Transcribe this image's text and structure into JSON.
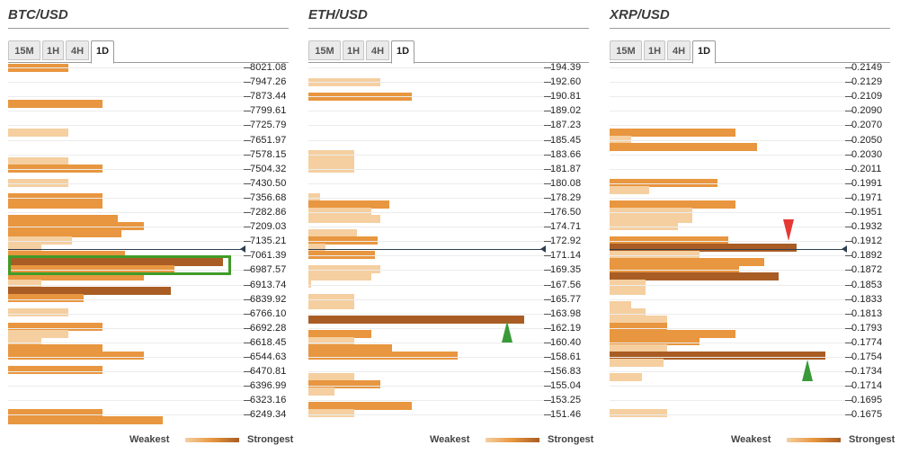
{
  "colors": {
    "weak": "#f5cfa0",
    "medium": "#e8963f",
    "strong": "#a95d24",
    "current_price_line": "#2d3e50",
    "up_arrow": "#3a9a3a",
    "down_arrow": "#e53935",
    "highlight_box": "#3f9c28"
  },
  "panels": [
    {
      "title": "BTC/USD",
      "tabs": [
        "15M",
        "1H",
        "4H",
        "1D"
      ],
      "active_tab": "1D",
      "prices": [
        "8021.08",
        "7947.26",
        "7873.44",
        "7799.61",
        "7725.79",
        "7651.97",
        "7578.15",
        "7504.32",
        "7430.50",
        "7356.68",
        "7282.86",
        "7209.03",
        "7135.21",
        "7061.39",
        "6987.57",
        "6913.74",
        "6839.92",
        "6766.10",
        "6692.28",
        "6618.45",
        "6544.63",
        "6470.81",
        "6396.99",
        "6323.16",
        "6249.34"
      ],
      "legend": {
        "weak": "Weakest",
        "strong": "Strongest"
      }
    },
    {
      "title": "ETH/USD",
      "tabs": [
        "15M",
        "1H",
        "4H",
        "1D"
      ],
      "active_tab": "1D",
      "prices": [
        "194.39",
        "192.60",
        "190.81",
        "189.02",
        "187.23",
        "185.45",
        "183.66",
        "181.87",
        "180.08",
        "178.29",
        "176.50",
        "174.71",
        "172.92",
        "171.14",
        "169.35",
        "167.56",
        "165.77",
        "163.98",
        "162.19",
        "160.40",
        "158.61",
        "156.83",
        "155.04",
        "153.25",
        "151.46"
      ],
      "legend": {
        "weak": "Weakest",
        "strong": "Strongest"
      }
    },
    {
      "title": "XRP/USD",
      "tabs": [
        "15M",
        "1H",
        "4H",
        "1D"
      ],
      "active_tab": "1D",
      "prices": [
        "0.2149",
        "0.2129",
        "0.2109",
        "0.2090",
        "0.2070",
        "0.2050",
        "0.2030",
        "0.2011",
        "0.1991",
        "0.1971",
        "0.1951",
        "0.1932",
        "0.1912",
        "0.1892",
        "0.1872",
        "0.1853",
        "0.1833",
        "0.1813",
        "0.1793",
        "0.1774",
        "0.1754",
        "0.1734",
        "0.1714",
        "0.1695",
        "0.1675"
      ],
      "legend": {
        "weak": "Weakest",
        "strong": "Strongest"
      }
    }
  ]
}
